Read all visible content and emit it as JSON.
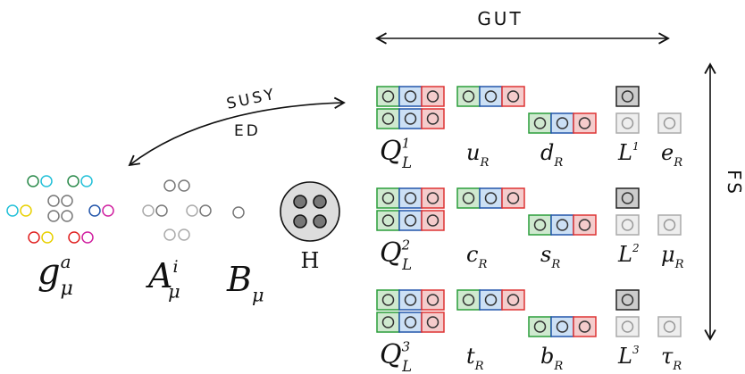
{
  "top_label": "GUT",
  "side_label": "FS",
  "arrow_labels": [
    "SUSY",
    "ED"
  ],
  "gauge": [
    {
      "base": "g",
      "sup": "a",
      "sub": "μ"
    },
    {
      "base": "A",
      "sup": "i",
      "sub": "μ"
    },
    {
      "base": "B",
      "sub": "μ"
    }
  ],
  "higgs": "H",
  "generations": [
    {
      "labels": [
        {
          "base": "Q",
          "sup": "1",
          "sub": "L"
        },
        {
          "base": "u",
          "sub": "R"
        },
        {
          "base": "d",
          "sub": "R"
        },
        {
          "base": "L",
          "sup": "1"
        },
        {
          "base": "e",
          "sub": "R"
        }
      ]
    },
    {
      "labels": [
        {
          "base": "Q",
          "sup": "2",
          "sub": "L"
        },
        {
          "base": "c",
          "sub": "R"
        },
        {
          "base": "s",
          "sub": "R"
        },
        {
          "base": "L",
          "sup": "2"
        },
        {
          "base": "μ",
          "sub": "R"
        }
      ]
    },
    {
      "labels": [
        {
          "base": "Q",
          "sup": "3",
          "sub": "L"
        },
        {
          "base": "t",
          "sub": "R"
        },
        {
          "base": "b",
          "sub": "R"
        },
        {
          "base": "L",
          "sup": "3"
        },
        {
          "base": "τ",
          "sub": "R"
        }
      ]
    }
  ]
}
